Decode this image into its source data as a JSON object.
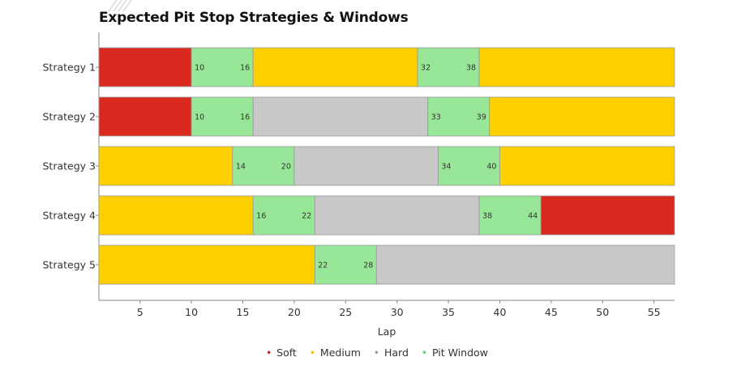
{
  "title": "Expected Pit Stop Strategies & Windows",
  "colors": {
    "soft": "#d9291f",
    "medium": "#ffd000",
    "hard": "#c8c8c8",
    "pit": "#98e698",
    "border": "#999999"
  },
  "chart_data": {
    "type": "bar",
    "orientation": "horizontal-stacked",
    "xlabel": "Lap",
    "ylabel": "",
    "xlim": [
      1,
      57
    ],
    "x_ticks": [
      5,
      10,
      15,
      20,
      25,
      30,
      35,
      40,
      45,
      50,
      55
    ],
    "grid": false,
    "legend_position": "bottom",
    "legend": [
      {
        "key": "soft",
        "label": "Soft"
      },
      {
        "key": "medium",
        "label": "Medium"
      },
      {
        "key": "hard",
        "label": "Hard"
      },
      {
        "key": "pit",
        "label": "Pit Window"
      }
    ],
    "strategies": [
      {
        "name": "Strategy 1",
        "segments": [
          {
            "compound": "soft",
            "start": 1,
            "end": 10
          },
          {
            "compound": "pit",
            "start": 10,
            "end": 16
          },
          {
            "compound": "medium",
            "start": 16,
            "end": 32
          },
          {
            "compound": "pit",
            "start": 32,
            "end": 38
          },
          {
            "compound": "medium",
            "start": 38,
            "end": 57
          }
        ]
      },
      {
        "name": "Strategy 2",
        "segments": [
          {
            "compound": "soft",
            "start": 1,
            "end": 10
          },
          {
            "compound": "pit",
            "start": 10,
            "end": 16
          },
          {
            "compound": "hard",
            "start": 16,
            "end": 33
          },
          {
            "compound": "pit",
            "start": 33,
            "end": 39
          },
          {
            "compound": "medium",
            "start": 39,
            "end": 57
          }
        ]
      },
      {
        "name": "Strategy 3",
        "segments": [
          {
            "compound": "medium",
            "start": 1,
            "end": 14
          },
          {
            "compound": "pit",
            "start": 14,
            "end": 20
          },
          {
            "compound": "hard",
            "start": 20,
            "end": 34
          },
          {
            "compound": "pit",
            "start": 34,
            "end": 40
          },
          {
            "compound": "medium",
            "start": 40,
            "end": 57
          }
        ]
      },
      {
        "name": "Strategy 4",
        "segments": [
          {
            "compound": "medium",
            "start": 1,
            "end": 16
          },
          {
            "compound": "pit",
            "start": 16,
            "end": 22
          },
          {
            "compound": "hard",
            "start": 22,
            "end": 38
          },
          {
            "compound": "pit",
            "start": 38,
            "end": 44
          },
          {
            "compound": "soft",
            "start": 44,
            "end": 57
          }
        ]
      },
      {
        "name": "Strategy 5",
        "segments": [
          {
            "compound": "medium",
            "start": 1,
            "end": 22
          },
          {
            "compound": "pit",
            "start": 22,
            "end": 28
          },
          {
            "compound": "hard",
            "start": 28,
            "end": 57
          }
        ]
      }
    ]
  }
}
